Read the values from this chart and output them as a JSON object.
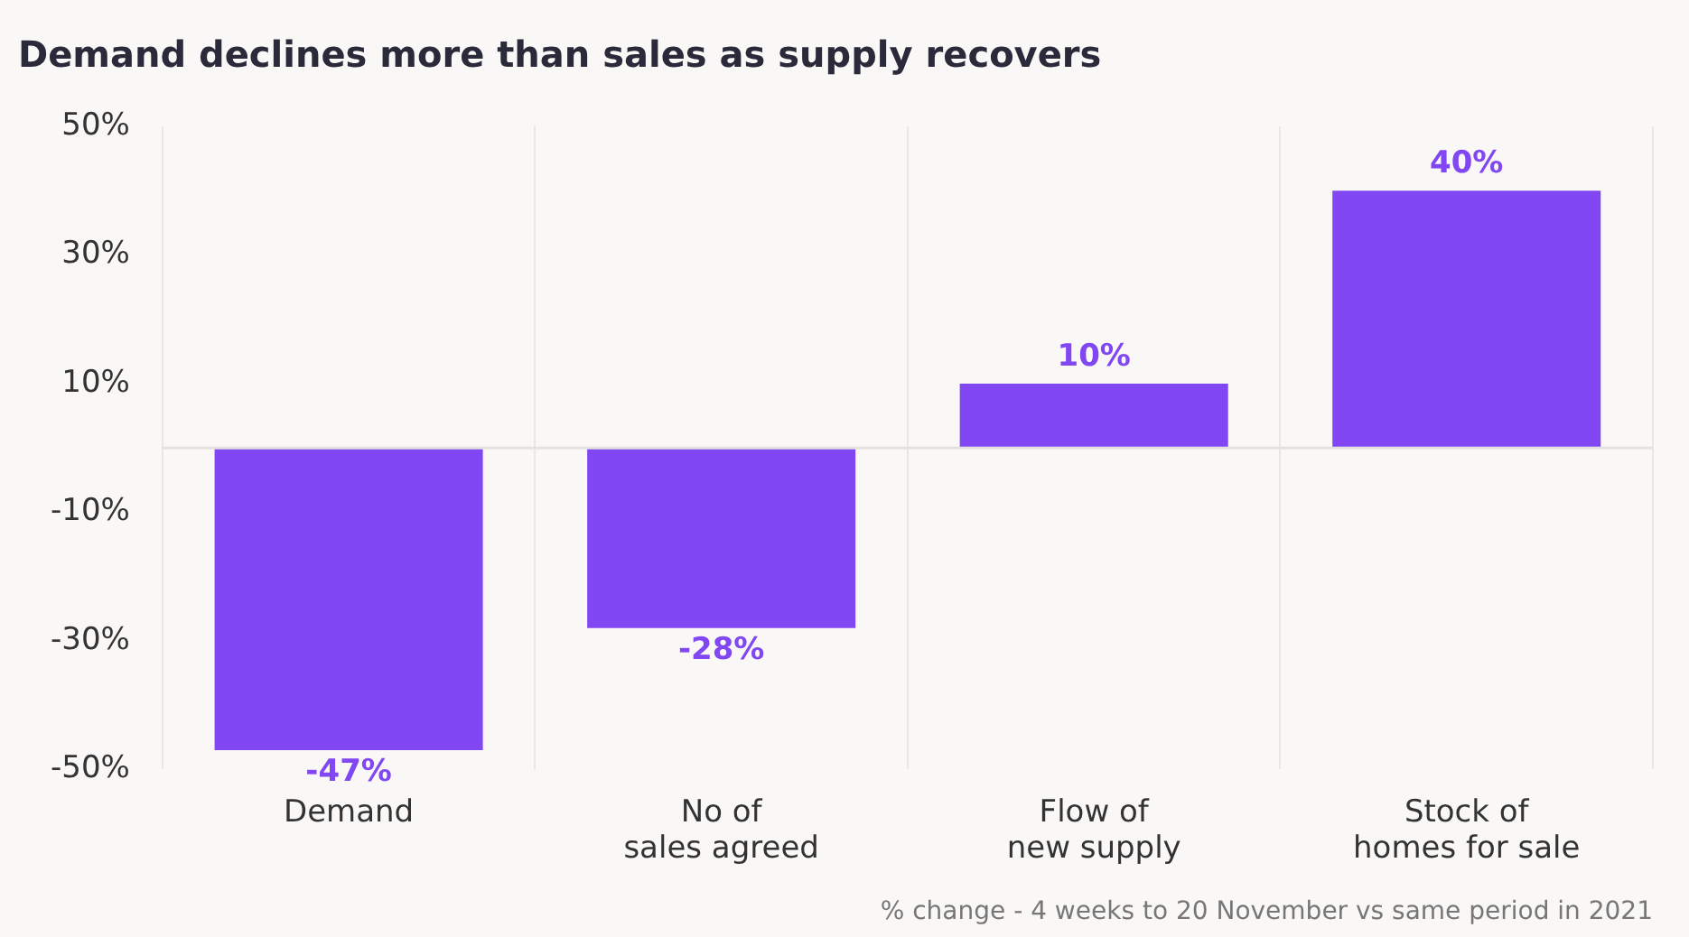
{
  "chart_data": {
    "type": "bar",
    "title": "Demand declines more than sales as supply recovers",
    "categories": [
      "Demand",
      "No of\nsales agreed",
      "Flow of\nnew supply",
      "Stock of\nhomes for sale"
    ],
    "values": [
      -47,
      -28,
      10,
      40
    ],
    "color": "#8047f3",
    "value_labels": [
      "-47%",
      "-28%",
      "10%",
      "40%"
    ],
    "ylim": [
      -50,
      50
    ],
    "yticks": [
      {
        "value": 50,
        "label": "50%"
      },
      {
        "value": 30,
        "label": "30%"
      },
      {
        "value": 10,
        "label": "10%"
      },
      {
        "value": -10,
        "label": "-10%"
      },
      {
        "value": -30,
        "label": "-30%"
      },
      {
        "value": -50,
        "label": "-50%"
      }
    ],
    "grid": "x",
    "ref_lines": [
      {
        "axis": "y",
        "value": 0,
        "color": "#e4e2e0"
      }
    ],
    "annotations": [
      "% change - 4 weeks to 20 November vs same period in 2021"
    ]
  }
}
